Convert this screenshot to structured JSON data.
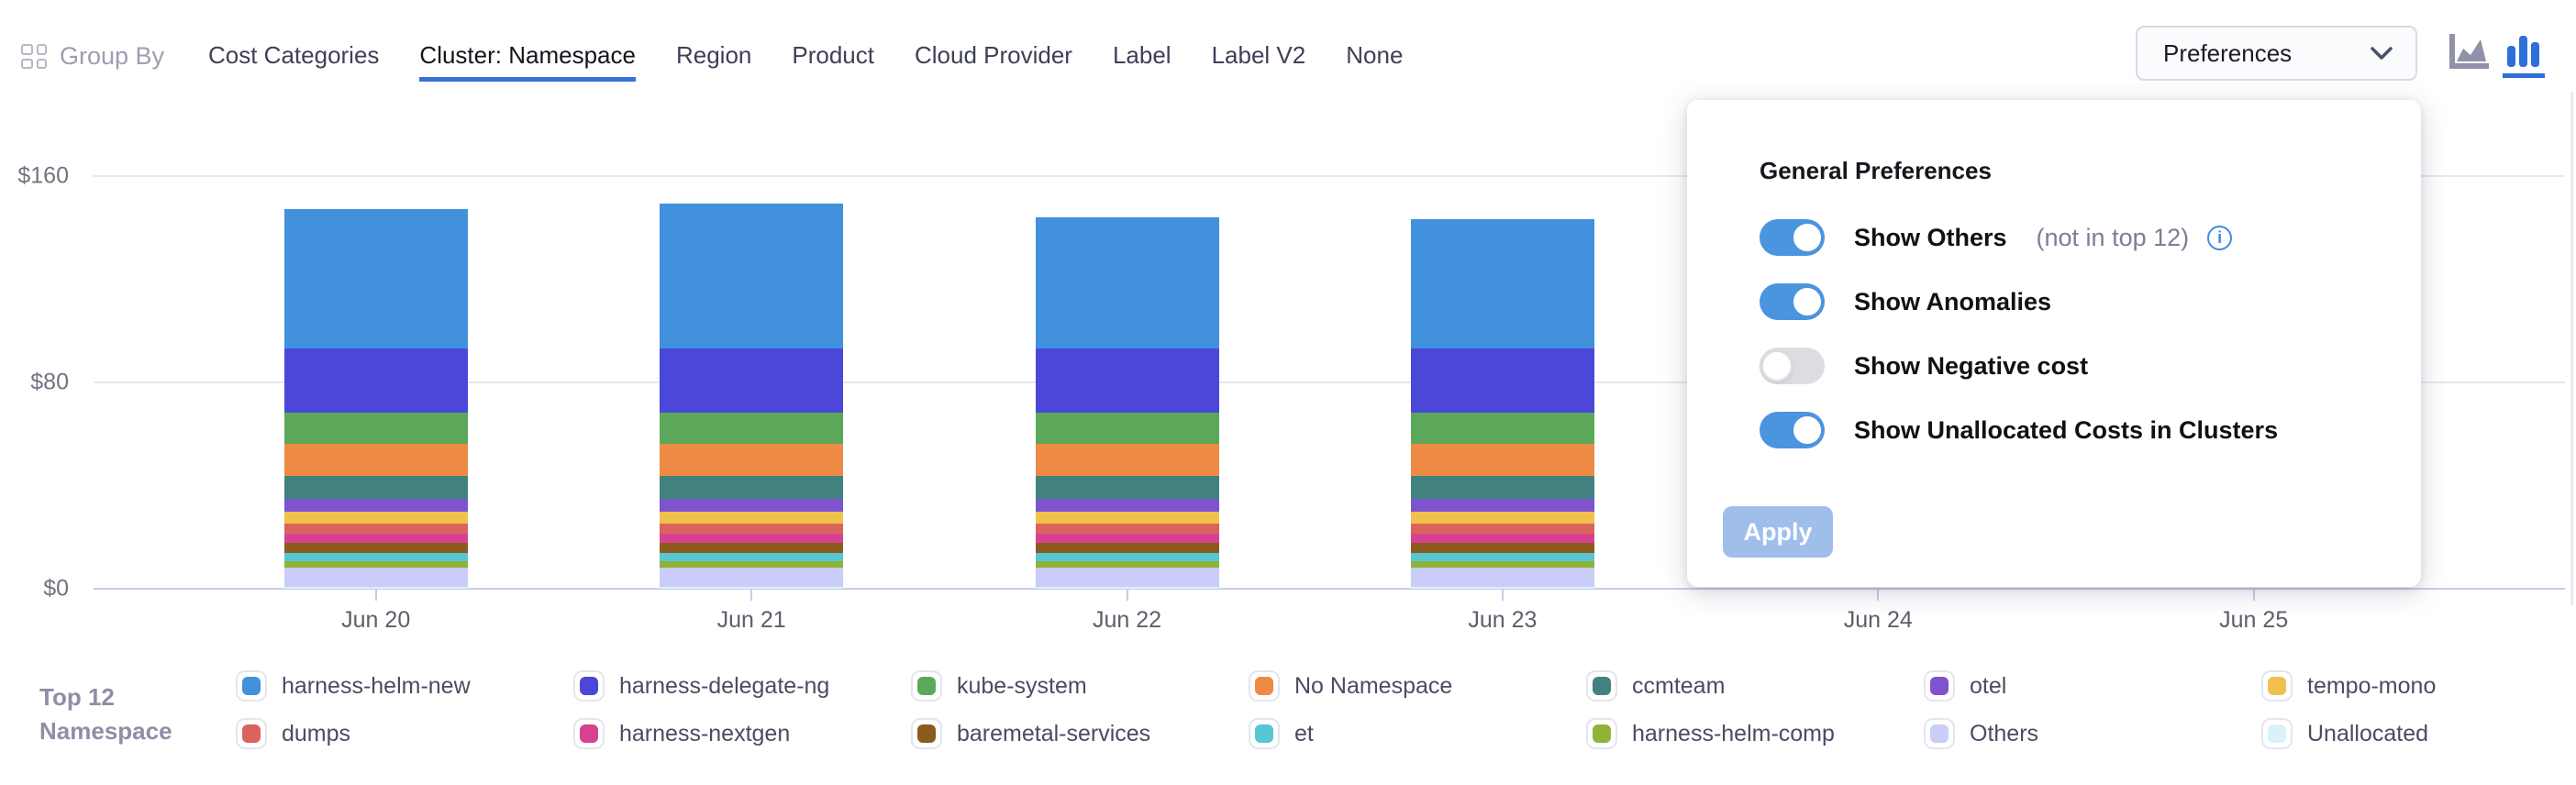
{
  "header": {
    "group_by_label": "Group By",
    "tabs": [
      {
        "label": "Cost Categories",
        "active": false
      },
      {
        "label": "Cluster: Namespace",
        "active": true
      },
      {
        "label": "Region",
        "active": false
      },
      {
        "label": "Product",
        "active": false
      },
      {
        "label": "Cloud Provider",
        "active": false
      },
      {
        "label": "Label",
        "active": false
      },
      {
        "label": "Label V2",
        "active": false
      },
      {
        "label": "None",
        "active": false
      }
    ],
    "preferences_label": "Preferences",
    "chart_type_icons": [
      {
        "name": "area-chart-icon",
        "selected": false
      },
      {
        "name": "bar-chart-icon",
        "selected": true
      }
    ]
  },
  "chart_data": {
    "type": "bar",
    "stacked": true,
    "unit": "$",
    "x_ticks": [
      "Jun 20",
      "Jun 21",
      "Jun 22",
      "Jun 23",
      "Jun 24",
      "Jun 25"
    ],
    "bars_visible_for": [
      "Jun 20",
      "Jun 21",
      "Jun 22",
      "Jun 23"
    ],
    "note": "Columns for Jun 24 and Jun 25 are obscured by the open Preferences popover",
    "ylim": [
      0,
      160
    ],
    "y_axis": {
      "ticks": [
        {
          "value": 160,
          "label": "$160"
        },
        {
          "value": 80,
          "label": "$80"
        },
        {
          "value": 0,
          "label": "$0"
        }
      ]
    },
    "grid": true,
    "legend_position": "bottom",
    "series_bottom_to_top": [
      {
        "name": "Unallocated",
        "color": "#DAF1FB",
        "values": [
          0.8,
          0.8,
          0.8,
          0.8
        ]
      },
      {
        "name": "Others",
        "color": "#CACDF8",
        "values": [
          7.5,
          7.5,
          7.5,
          7.5
        ]
      },
      {
        "name": "harness-helm-comp",
        "color": "#90B236",
        "values": [
          2.5,
          2.5,
          2.5,
          2.5
        ]
      },
      {
        "name": "et",
        "color": "#57C7D4",
        "values": [
          3,
          3,
          3,
          3
        ]
      },
      {
        "name": "baremetal-services",
        "color": "#8C5B1F",
        "values": [
          4,
          4,
          4,
          4
        ]
      },
      {
        "name": "harness-nextgen",
        "color": "#D8418F",
        "values": [
          3.5,
          3.5,
          3.5,
          3.5
        ]
      },
      {
        "name": "dumps",
        "color": "#DA635C",
        "values": [
          4,
          4,
          4,
          4
        ]
      },
      {
        "name": "tempo-mono",
        "color": "#F0C14D",
        "values": [
          4.5,
          4.5,
          4.5,
          4.5
        ]
      },
      {
        "name": "otel",
        "color": "#7D53CE",
        "values": [
          5,
          5,
          5,
          5
        ]
      },
      {
        "name": "ccmteam",
        "color": "#41827E",
        "values": [
          9,
          9,
          9,
          9
        ]
      },
      {
        "name": "No Namespace",
        "color": "#EE8A44",
        "values": [
          12.5,
          12.5,
          12.5,
          12.5
        ]
      },
      {
        "name": "kube-system",
        "color": "#5CA85A",
        "values": [
          12,
          12,
          12,
          12
        ]
      },
      {
        "name": "harness-delegate-ng",
        "color": "#4A47D9",
        "values": [
          25,
          25,
          25,
          25
        ]
      },
      {
        "name": "harness-helm-new",
        "color": "#4191DC",
        "values": [
          54,
          56,
          51,
          50
        ]
      }
    ]
  },
  "legend": {
    "title_line1": "Top 12",
    "title_line2": "Namespace",
    "items_column_major": [
      {
        "label": "harness-helm-new",
        "color": "#4191DC"
      },
      {
        "label": "dumps",
        "color": "#DA635C"
      },
      {
        "label": "harness-delegate-ng",
        "color": "#4A47D9"
      },
      {
        "label": "harness-nextgen",
        "color": "#D8418F"
      },
      {
        "label": "kube-system",
        "color": "#5CA85A"
      },
      {
        "label": "baremetal-services",
        "color": "#8C5B1F"
      },
      {
        "label": "No Namespace",
        "color": "#EE8A44"
      },
      {
        "label": "et",
        "color": "#57C7D4"
      },
      {
        "label": "ccmteam",
        "color": "#41827E"
      },
      {
        "label": "harness-helm-comp",
        "color": "#90B236"
      },
      {
        "label": "otel",
        "color": "#7D53CE"
      },
      {
        "label": "Others",
        "color": "#CACDF8"
      },
      {
        "label": "tempo-mono",
        "color": "#F0C14D"
      },
      {
        "label": "Unallocated",
        "color": "#DAF1FB"
      }
    ]
  },
  "preferences_panel": {
    "heading": "General Preferences",
    "toggles": [
      {
        "label": "Show Others",
        "suffix": "(not in top 12)",
        "has_info": true,
        "on": true
      },
      {
        "label": "Show Anomalies",
        "suffix": "",
        "has_info": false,
        "on": true
      },
      {
        "label": "Show Negative cost",
        "suffix": "",
        "has_info": false,
        "on": false
      },
      {
        "label": "Show Unallocated Costs in Clusters",
        "suffix": "",
        "has_info": false,
        "on": true
      }
    ],
    "apply_label": "Apply"
  },
  "colors": {
    "accent_blue": "#3B72D8",
    "toggle_on": "#4B94DF",
    "apply_disabled": "#9FBEEA",
    "gridline": "#E7E8F0",
    "axis": "#C6CDE8"
  }
}
